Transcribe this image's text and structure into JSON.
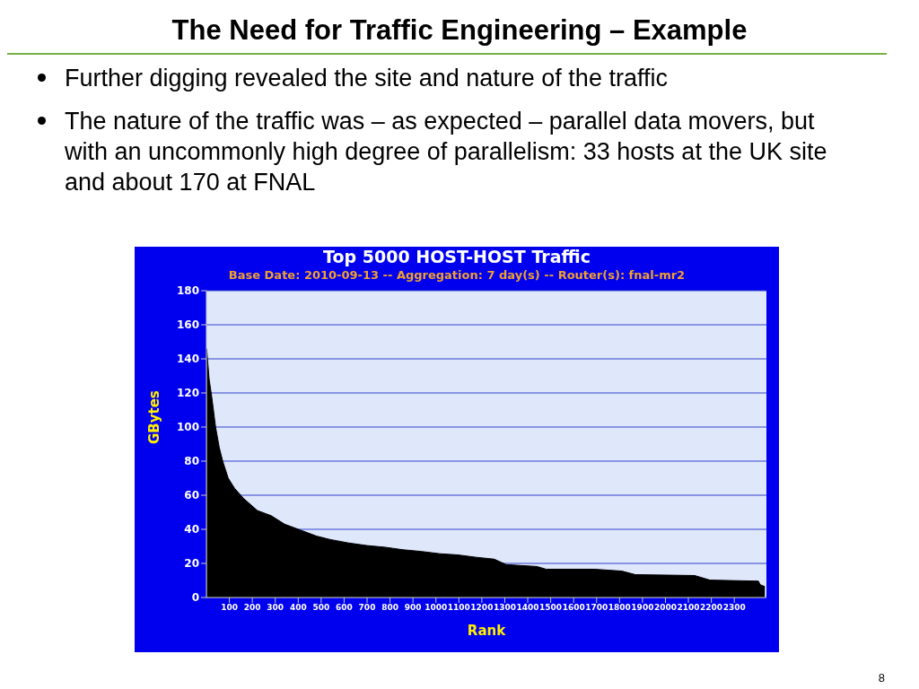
{
  "chart_data": {
    "type": "area",
    "title": "Top 5000 HOST-HOST Traffic",
    "subtitle": "Base Date: 2010-09-13 -- Aggregation: 7 day(s) -- Router(s): fnal-mr2",
    "xlabel": "Rank",
    "ylabel": "GBytes",
    "annotations": [
      "The Need for Traffic Engineering – Example",
      "Further digging revealed the site and nature of the traffic",
      "The nature of the traffic was – as expected – parallel data movers, but with an uncommonly high degree of parallelism: 33 hosts at the UK site and about 170 at FNAL",
      "8"
    ],
    "x": [
      1,
      12,
      24,
      40,
      56,
      71,
      95,
      123,
      163,
      222,
      282,
      341,
      401,
      480,
      540,
      619,
      698,
      778,
      857,
      937,
      1016,
      1095,
      1175,
      1254,
      1306,
      1440,
      1480,
      1690,
      1810,
      1869,
      2127,
      2194,
      2405,
      2413,
      2433
    ],
    "series": [
      {
        "color": "#000000",
        "values": [
          146,
          128,
          117,
          100,
          88,
          80,
          70,
          64,
          58,
          51,
          48,
          43,
          40,
          36,
          34,
          32,
          30.5,
          29.5,
          28,
          27,
          25.7,
          25,
          23.6,
          22.5,
          19.3,
          18.2,
          16.6,
          16.6,
          15.5,
          13.4,
          12.9,
          10.2,
          9.6,
          7.5,
          6.4
        ]
      }
    ],
    "xlim": [
      0,
      2440
    ],
    "xticks": [
      100,
      200,
      300,
      400,
      500,
      600,
      700,
      800,
      900,
      1000,
      1100,
      1200,
      1300,
      1400,
      1500,
      1600,
      1700,
      1800,
      1900,
      2000,
      2100,
      2200,
      2300
    ],
    "ylim": [
      0,
      180
    ],
    "yticks": [
      0,
      20,
      40,
      60,
      80,
      100,
      120,
      140,
      160,
      180
    ],
    "grid": "y",
    "legend": false
  }
}
